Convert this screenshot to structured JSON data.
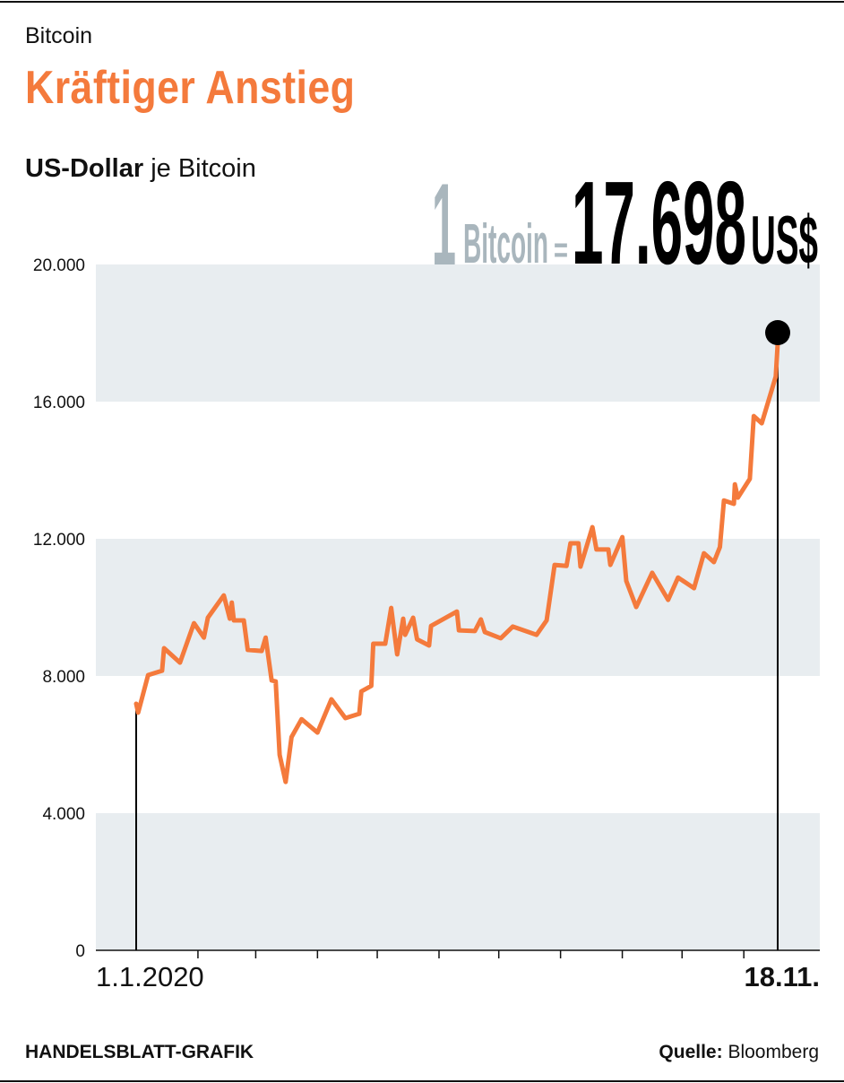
{
  "header": {
    "kicker": "Bitcoin",
    "title": "Kräftiger Anstieg",
    "unit_bold": "US-Dollar",
    "unit_rest": " je Bitcoin"
  },
  "callout": {
    "quantity": "1",
    "asset": "Bitcoin",
    "equals": "=",
    "price": "17.698",
    "currency": "US$"
  },
  "footer": {
    "credit": "HANDELSBLATT-GRAFIK",
    "source_label": "Quelle:",
    "source": " Bloomberg"
  },
  "colors": {
    "line": "#f47a3c",
    "band": "#e8edf0",
    "callout_grey": "#a9b6bd",
    "axis": "#111111"
  },
  "chart_data": {
    "type": "line",
    "title": "Kräftiger Anstieg",
    "ylabel": "US-Dollar je Bitcoin",
    "xlabel": "",
    "ylim": [
      0,
      20000
    ],
    "yticks": [
      0,
      4000,
      8000,
      12000,
      16000,
      20000
    ],
    "ytick_labels": [
      "0",
      "4.000",
      "8.000",
      "12.000",
      "16.000",
      "20.000"
    ],
    "x_unit": "days since 1.1.2020",
    "xlim": [
      0,
      322
    ],
    "xtick_days": [
      31,
      60,
      91,
      121,
      152,
      182,
      213,
      244,
      274,
      305
    ],
    "x_start_label": "1.1.2020",
    "x_end_label": "18.11.",
    "grid": "alternating horizontal bands",
    "series": [
      {
        "name": "Bitcoin (US$)",
        "x": [
          0,
          1,
          6,
          13,
          14,
          22,
          29,
          34,
          36,
          44,
          47,
          48,
          49,
          54,
          56,
          63,
          65,
          68,
          70,
          72,
          75,
          78,
          83,
          91,
          98,
          105,
          112,
          113,
          118,
          119,
          125,
          128,
          131,
          134,
          135,
          139,
          141,
          147,
          148,
          161,
          162,
          170,
          173,
          175,
          183,
          189,
          201,
          206,
          210,
          216,
          218,
          222,
          223,
          229,
          231,
          237,
          238,
          244,
          246,
          251,
          259,
          267,
          272,
          280,
          285,
          290,
          293,
          295,
          300,
          300.5,
          302,
          308,
          310,
          314,
          321,
          322
        ],
        "y": [
          7190,
          6930,
          8025,
          8155,
          8810,
          8390,
          9540,
          9120,
          9700,
          10350,
          9670,
          10140,
          9620,
          9620,
          8760,
          8730,
          9120,
          7870,
          7840,
          5700,
          4910,
          6220,
          6740,
          6350,
          7320,
          6770,
          6900,
          7550,
          7710,
          8940,
          8940,
          9985,
          8630,
          9670,
          9200,
          9700,
          9070,
          8890,
          9460,
          9880,
          9330,
          9310,
          9650,
          9280,
          9100,
          9440,
          9200,
          9620,
          11240,
          11210,
          11870,
          11870,
          11190,
          12340,
          11690,
          11690,
          11240,
          12050,
          10770,
          10010,
          11010,
          10220,
          10870,
          10560,
          11580,
          11320,
          11760,
          13120,
          13020,
          13590,
          13200,
          13750,
          15580,
          15370,
          16730,
          17698
        ]
      }
    ],
    "highlight": {
      "x": 322,
      "label": "17.698"
    }
  }
}
